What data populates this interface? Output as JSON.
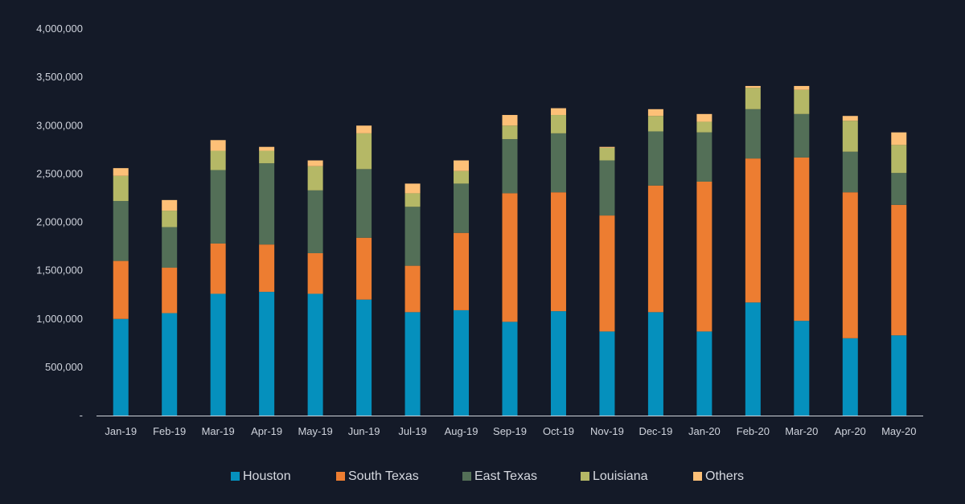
{
  "chart_data": {
    "type": "bar",
    "stacked": true,
    "categories": [
      "Jan-19",
      "Feb-19",
      "Mar-19",
      "Apr-19",
      "May-19",
      "Jun-19",
      "Jul-19",
      "Aug-19",
      "Sep-19",
      "Oct-19",
      "Nov-19",
      "Dec-19",
      "Jan-20",
      "Feb-20",
      "Mar-20",
      "Apr-20",
      "May-20"
    ],
    "yticks": [
      "-",
      "500,000",
      "1,000,000",
      "1,500,000",
      "2,000,000",
      "2,500,000",
      "3,000,000",
      "3,500,000",
      "4,000,000"
    ],
    "ylim": [
      0,
      4000000
    ],
    "grid": false,
    "legend_position": "bottom",
    "series": [
      {
        "name": "Houston",
        "color": "#0590bd",
        "values": [
          1000000,
          1060000,
          1260000,
          1280000,
          1260000,
          1200000,
          1070000,
          1090000,
          970000,
          1080000,
          870000,
          1070000,
          870000,
          1170000,
          980000,
          800000,
          830000
        ]
      },
      {
        "name": "South Texas",
        "color": "#ed7d31",
        "values": [
          600000,
          470000,
          520000,
          490000,
          420000,
          640000,
          480000,
          800000,
          1330000,
          1230000,
          1200000,
          1310000,
          1550000,
          1490000,
          1690000,
          1510000,
          1350000
        ]
      },
      {
        "name": "East Texas",
        "color": "#536f57",
        "values": [
          620000,
          420000,
          760000,
          840000,
          650000,
          710000,
          610000,
          510000,
          560000,
          610000,
          570000,
          560000,
          510000,
          510000,
          450000,
          420000,
          330000
        ]
      },
      {
        "name": "Louisiana",
        "color": "#b5b866",
        "values": [
          260000,
          170000,
          200000,
          130000,
          250000,
          370000,
          140000,
          130000,
          140000,
          190000,
          130000,
          160000,
          110000,
          220000,
          250000,
          320000,
          290000
        ]
      },
      {
        "name": "Others",
        "color": "#fdc077",
        "values": [
          80000,
          110000,
          110000,
          40000,
          60000,
          80000,
          100000,
          110000,
          110000,
          70000,
          10000,
          70000,
          80000,
          20000,
          40000,
          50000,
          130000
        ]
      }
    ]
  }
}
